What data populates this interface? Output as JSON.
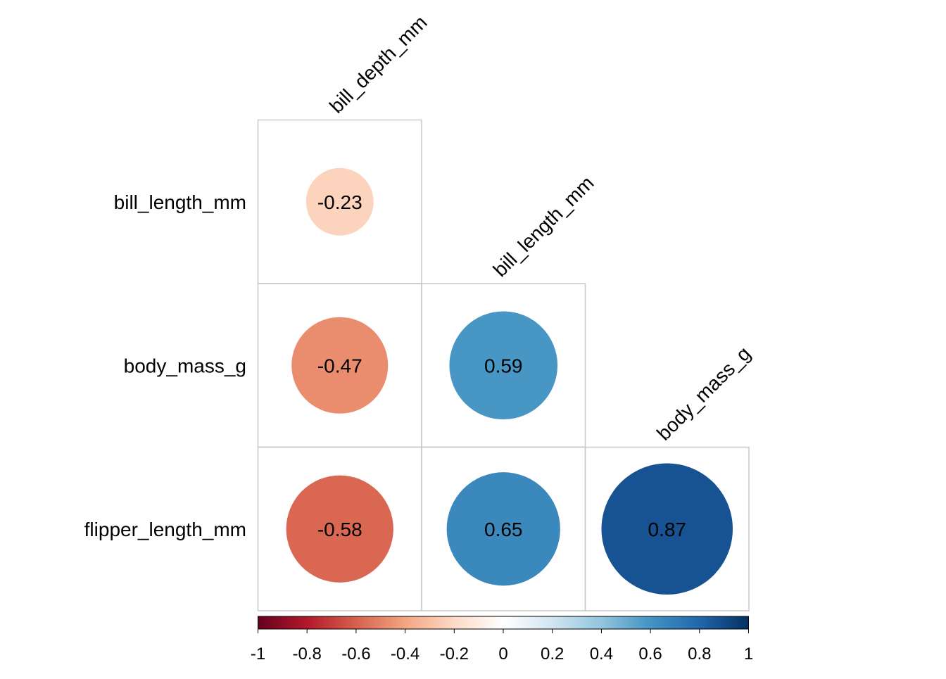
{
  "chart_data": {
    "type": "heatmap",
    "variant": "correlation-matrix-lower-circles",
    "title": "",
    "column_labels": [
      "bill_depth_mm",
      "bill_length_mm",
      "body_mass_g"
    ],
    "row_labels": [
      "bill_length_mm",
      "body_mass_g",
      "flipper_length_mm"
    ],
    "cells": [
      {
        "row": "bill_length_mm",
        "col": "bill_depth_mm",
        "value": -0.23,
        "label": "-0.23"
      },
      {
        "row": "body_mass_g",
        "col": "bill_depth_mm",
        "value": -0.47,
        "label": "-0.47"
      },
      {
        "row": "body_mass_g",
        "col": "bill_length_mm",
        "value": 0.59,
        "label": "0.59"
      },
      {
        "row": "flipper_length_mm",
        "col": "bill_depth_mm",
        "value": -0.58,
        "label": "-0.58"
      },
      {
        "row": "flipper_length_mm",
        "col": "bill_length_mm",
        "value": 0.65,
        "label": "0.65"
      },
      {
        "row": "flipper_length_mm",
        "col": "body_mass_g",
        "value": 0.87,
        "label": "0.87"
      }
    ],
    "colorbar": {
      "range": [
        -1,
        1
      ],
      "ticks": [
        "-1",
        "-0.8",
        "-0.6",
        "-0.4",
        "-0.2",
        "0",
        "0.2",
        "0.4",
        "0.6",
        "0.8",
        "1"
      ],
      "colors": [
        "#67001f",
        "#b2182b",
        "#d6604d",
        "#f4a582",
        "#fddbc7",
        "#ffffff",
        "#d1e5f0",
        "#92c5de",
        "#4393c3",
        "#2166ac",
        "#053061"
      ]
    },
    "grid_color": "#c8c8c8"
  }
}
